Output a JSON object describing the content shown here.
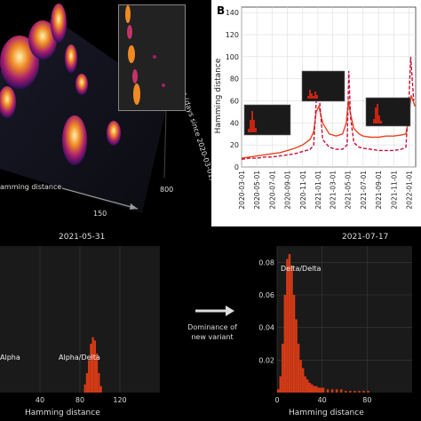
{
  "panel_a": {
    "xlabel": "amming distance",
    "x_tick_150": "150",
    "y_tick_800": "800",
    "zlabel": "Time (days since 2020-03-01)"
  },
  "panel_b": {
    "label": "B",
    "ylabel": "Hamming distance"
  },
  "panel_c": {
    "title": "2021-05-31",
    "xlabel": "Hamming distance",
    "annot_1": "Alpha",
    "annot_2": "Alpha/Delta"
  },
  "arrow": {
    "text_line1": "Dominance of",
    "text_line2": "new variant"
  },
  "panel_d": {
    "title": "2021-07-17",
    "xlabel": "Hamming distance",
    "annot_1": "Delta/Delta"
  },
  "colors": {
    "line_solid": "#e8451f",
    "line_dashed": "#c4123b",
    "hist": "#d23a16",
    "dark_bg": "#1a1a1a"
  },
  "chart_data": [
    {
      "type": "line",
      "title": "",
      "xlabel": "",
      "ylabel": "Hamming distance",
      "ylim": [
        0,
        145
      ],
      "yticks": [
        0,
        20,
        40,
        60,
        80,
        100,
        120,
        140
      ],
      "xtick_labels": [
        "2020-03-01",
        "2020-05-01",
        "2020-07-01",
        "2020-09-01",
        "2020-11-01",
        "2021-01-01",
        "2021-03-01",
        "2021-05-01",
        "2021-07-01",
        "2021-09-01",
        "2021-11-01",
        "2022-01-01"
      ],
      "grid": true,
      "series": [
        {
          "style": "solid",
          "x": [
            "2020-03-01",
            "2020-04-01",
            "2020-05-01",
            "2020-06-01",
            "2020-07-01",
            "2020-08-01",
            "2020-09-01",
            "2020-10-01",
            "2020-11-01",
            "2020-12-01",
            "2020-12-15",
            "2020-12-25",
            "2021-01-05",
            "2021-01-20",
            "2021-02-15",
            "2021-03-15",
            "2021-04-10",
            "2021-04-25",
            "2021-05-03",
            "2021-05-12",
            "2021-05-25",
            "2021-06-15",
            "2021-07-01",
            "2021-08-01",
            "2021-09-01",
            "2021-10-01",
            "2021-11-01",
            "2021-12-01",
            "2021-12-20",
            "2022-01-01",
            "2022-01-10",
            "2022-01-25"
          ],
          "y": [
            8,
            9,
            10,
            11,
            12,
            13,
            15,
            17,
            20,
            25,
            32,
            50,
            55,
            40,
            30,
            28,
            30,
            40,
            60,
            48,
            35,
            30,
            28,
            27,
            27,
            28,
            28,
            29,
            30,
            45,
            65,
            55
          ]
        },
        {
          "style": "dashed",
          "x": [
            "2020-03-01",
            "2020-04-01",
            "2020-05-01",
            "2020-06-01",
            "2020-07-01",
            "2020-08-01",
            "2020-09-01",
            "2020-10-01",
            "2020-11-01",
            "2020-12-01",
            "2020-12-15",
            "2020-12-28",
            "2021-01-08",
            "2021-01-20",
            "2021-02-15",
            "2021-03-15",
            "2021-04-10",
            "2021-04-28",
            "2021-05-05",
            "2021-05-12",
            "2021-05-25",
            "2021-06-15",
            "2021-07-01",
            "2021-08-01",
            "2021-09-01",
            "2021-10-01",
            "2021-11-01",
            "2021-12-01",
            "2021-12-20",
            "2022-01-01",
            "2022-01-08",
            "2022-01-20"
          ],
          "y": [
            7,
            8,
            8,
            9,
            9,
            10,
            11,
            12,
            14,
            16,
            20,
            70,
            60,
            25,
            18,
            16,
            16,
            20,
            87,
            45,
            22,
            18,
            17,
            16,
            15,
            15,
            15,
            16,
            18,
            60,
            100,
            60
          ]
        }
      ],
      "insets": [
        {
          "position": "left",
          "type": "histogram"
        },
        {
          "position": "middle",
          "type": "histogram"
        },
        {
          "position": "right",
          "type": "histogram"
        }
      ]
    },
    {
      "type": "bar",
      "title": "2021-05-31",
      "xlabel": "Hamming distance",
      "xticks": [
        40,
        80,
        120
      ],
      "xlim": [
        0,
        160
      ],
      "series": [
        {
          "x": [
            84,
            86,
            88,
            90,
            92,
            94,
            96,
            98,
            100
          ],
          "y": [
            0.005,
            0.012,
            0.02,
            0.03,
            0.034,
            0.032,
            0.024,
            0.012,
            0.004
          ]
        }
      ],
      "annotations": [
        "Alpha",
        "Alpha/Delta"
      ]
    },
    {
      "type": "bar",
      "title": "2021-07-17",
      "xlabel": "Hamming distance",
      "xticks": [
        0,
        40,
        80
      ],
      "yticks": [
        0.02,
        0.04,
        0.06,
        0.08
      ],
      "ylim": [
        0,
        0.09
      ],
      "series": [
        {
          "x": [
            0,
            2,
            4,
            6,
            8,
            10,
            12,
            14,
            16,
            18,
            20,
            22,
            24,
            26,
            28,
            30,
            32,
            34,
            36,
            38,
            40,
            44,
            48,
            52,
            56,
            60,
            64,
            68,
            72,
            76,
            80
          ],
          "y": [
            0.002,
            0.01,
            0.03,
            0.06,
            0.082,
            0.085,
            0.078,
            0.06,
            0.045,
            0.03,
            0.02,
            0.015,
            0.01,
            0.008,
            0.006,
            0.005,
            0.004,
            0.004,
            0.003,
            0.003,
            0.003,
            0.002,
            0.002,
            0.002,
            0.002,
            0.001,
            0.001,
            0.001,
            0.001,
            0.001,
            0.001
          ]
        }
      ],
      "annotations": [
        "Delta/Delta"
      ]
    }
  ]
}
